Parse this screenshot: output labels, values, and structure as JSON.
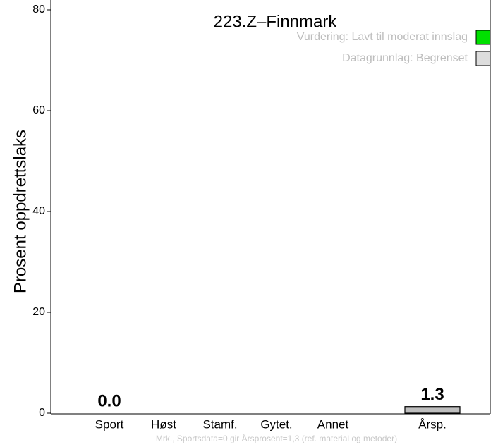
{
  "chart_data": {
    "type": "bar",
    "subtitle": "223.Z–Finnmark",
    "ylabel": "Prosent oppdrettslaks",
    "categories": [
      "Sport",
      "Høst",
      "Stamf.",
      "Gytet.",
      "Annet",
      "Årsp."
    ],
    "values": [
      0.0,
      null,
      null,
      null,
      null,
      1.3
    ],
    "value_labels": [
      "0.0",
      null,
      null,
      null,
      null,
      "1.3"
    ],
    "color": "#bebebe",
    "ylim": [
      0,
      80
    ],
    "yticks": [
      0,
      20,
      40,
      60,
      80
    ],
    "legend": [
      {
        "name": "Vurdering: Lavt til moderat innslag",
        "color": "#00e000"
      },
      {
        "name": "Datagrunnlag: Begrenset",
        "color": "#dddddd"
      }
    ],
    "note": "Mrk., Sportsdata=0 gir Årsprosent=1,3 (ref. material og metoder)"
  }
}
